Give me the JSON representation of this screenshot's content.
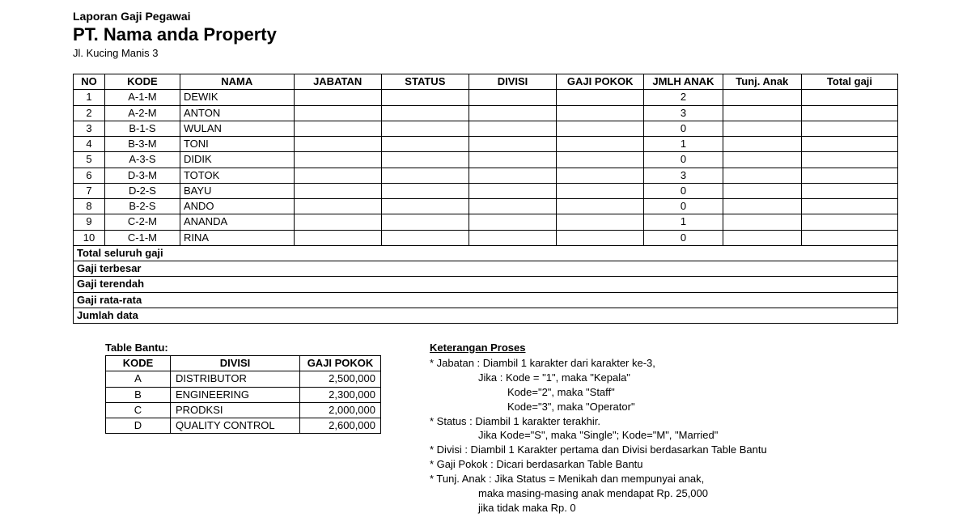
{
  "header": {
    "report_title": "Laporan Gaji Pegawai",
    "company": "PT. Nama anda Property",
    "address": "Jl. Kucing Manis 3"
  },
  "main_table": {
    "columns": [
      "NO",
      "KODE",
      "NAMA",
      "JABATAN",
      "STATUS",
      "DIVISI",
      "GAJI POKOK",
      "JMLH ANAK",
      "Tunj. Anak",
      "Total gaji"
    ],
    "rows": [
      {
        "no": "1",
        "kode": "A-1-M",
        "nama": "DEWIK",
        "jabatan": "",
        "status": "",
        "divisi": "",
        "gaji": "",
        "anak": "2",
        "tunj": "",
        "total": ""
      },
      {
        "no": "2",
        "kode": "A-2-M",
        "nama": "ANTON",
        "jabatan": "",
        "status": "",
        "divisi": "",
        "gaji": "",
        "anak": "3",
        "tunj": "",
        "total": ""
      },
      {
        "no": "3",
        "kode": "B-1-S",
        "nama": "WULAN",
        "jabatan": "",
        "status": "",
        "divisi": "",
        "gaji": "",
        "anak": "0",
        "tunj": "",
        "total": ""
      },
      {
        "no": "4",
        "kode": "B-3-M",
        "nama": "TONI",
        "jabatan": "",
        "status": "",
        "divisi": "",
        "gaji": "",
        "anak": "1",
        "tunj": "",
        "total": ""
      },
      {
        "no": "5",
        "kode": "A-3-S",
        "nama": "DIDIK",
        "jabatan": "",
        "status": "",
        "divisi": "",
        "gaji": "",
        "anak": "0",
        "tunj": "",
        "total": ""
      },
      {
        "no": "6",
        "kode": "D-3-M",
        "nama": "TOTOK",
        "jabatan": "",
        "status": "",
        "divisi": "",
        "gaji": "",
        "anak": "3",
        "tunj": "",
        "total": ""
      },
      {
        "no": "7",
        "kode": "D-2-S",
        "nama": "BAYU",
        "jabatan": "",
        "status": "",
        "divisi": "",
        "gaji": "",
        "anak": "0",
        "tunj": "",
        "total": ""
      },
      {
        "no": "8",
        "kode": "B-2-S",
        "nama": "ANDO",
        "jabatan": "",
        "status": "",
        "divisi": "",
        "gaji": "",
        "anak": "0",
        "tunj": "",
        "total": ""
      },
      {
        "no": "9",
        "kode": "C-2-M",
        "nama": "ANANDA",
        "jabatan": "",
        "status": "",
        "divisi": "",
        "gaji": "",
        "anak": "1",
        "tunj": "",
        "total": ""
      },
      {
        "no": "10",
        "kode": "C-1-M",
        "nama": "RINA",
        "jabatan": "",
        "status": "",
        "divisi": "",
        "gaji": "",
        "anak": "0",
        "tunj": "",
        "total": ""
      }
    ],
    "summary_labels": [
      "Total seluruh gaji",
      "Gaji terbesar",
      "Gaji terendah",
      "Gaji rata-rata",
      "Jumlah data"
    ]
  },
  "helper_table": {
    "title": "Table Bantu:",
    "columns": [
      "KODE",
      "DIVISI",
      "GAJI POKOK"
    ],
    "rows": [
      {
        "kode": "A",
        "divisi": "DISTRIBUTOR",
        "gaji": "2,500,000"
      },
      {
        "kode": "B",
        "divisi": "ENGINEERING",
        "gaji": "2,300,000"
      },
      {
        "kode": "C",
        "divisi": "PRODKSI",
        "gaji": "2,000,000"
      },
      {
        "kode": "D",
        "divisi": "QUALITY CONTROL",
        "gaji": "2,600,000"
      }
    ]
  },
  "notes": {
    "title": "Keterangan Proses",
    "lines": [
      {
        "t": "* Jabatan : Diambil 1 karakter dari karakter ke-3,",
        "cls": ""
      },
      {
        "t": "Jika : Kode = \"1\", maka \"Kepala\"",
        "cls": "indent1"
      },
      {
        "t": "Kode=\"2\", maka \"Staff\"",
        "cls": "indent2"
      },
      {
        "t": "Kode=\"3\", maka \"Operator\"",
        "cls": "indent2"
      },
      {
        "t": "* Status : Diambil 1 karakter terakhir.",
        "cls": ""
      },
      {
        "t": "Jika Kode=\"S\", maka \"Single\"; Kode=\"M\", \"Married\"",
        "cls": "indent1"
      },
      {
        "t": "* Divisi : Diambil 1 Karakter pertama dan Divisi berdasarkan Table Bantu",
        "cls": ""
      },
      {
        "t": "* Gaji Pokok : Dicari berdasarkan Table Bantu",
        "cls": ""
      },
      {
        "t": "* Tunj. Anak : Jika Status = Menikah dan mempunyai anak,",
        "cls": ""
      },
      {
        "t": "maka masing-masing anak mendapat Rp. 25,000",
        "cls": "indent1"
      },
      {
        "t": "jika tidak maka Rp. 0",
        "cls": "indent1"
      }
    ]
  }
}
